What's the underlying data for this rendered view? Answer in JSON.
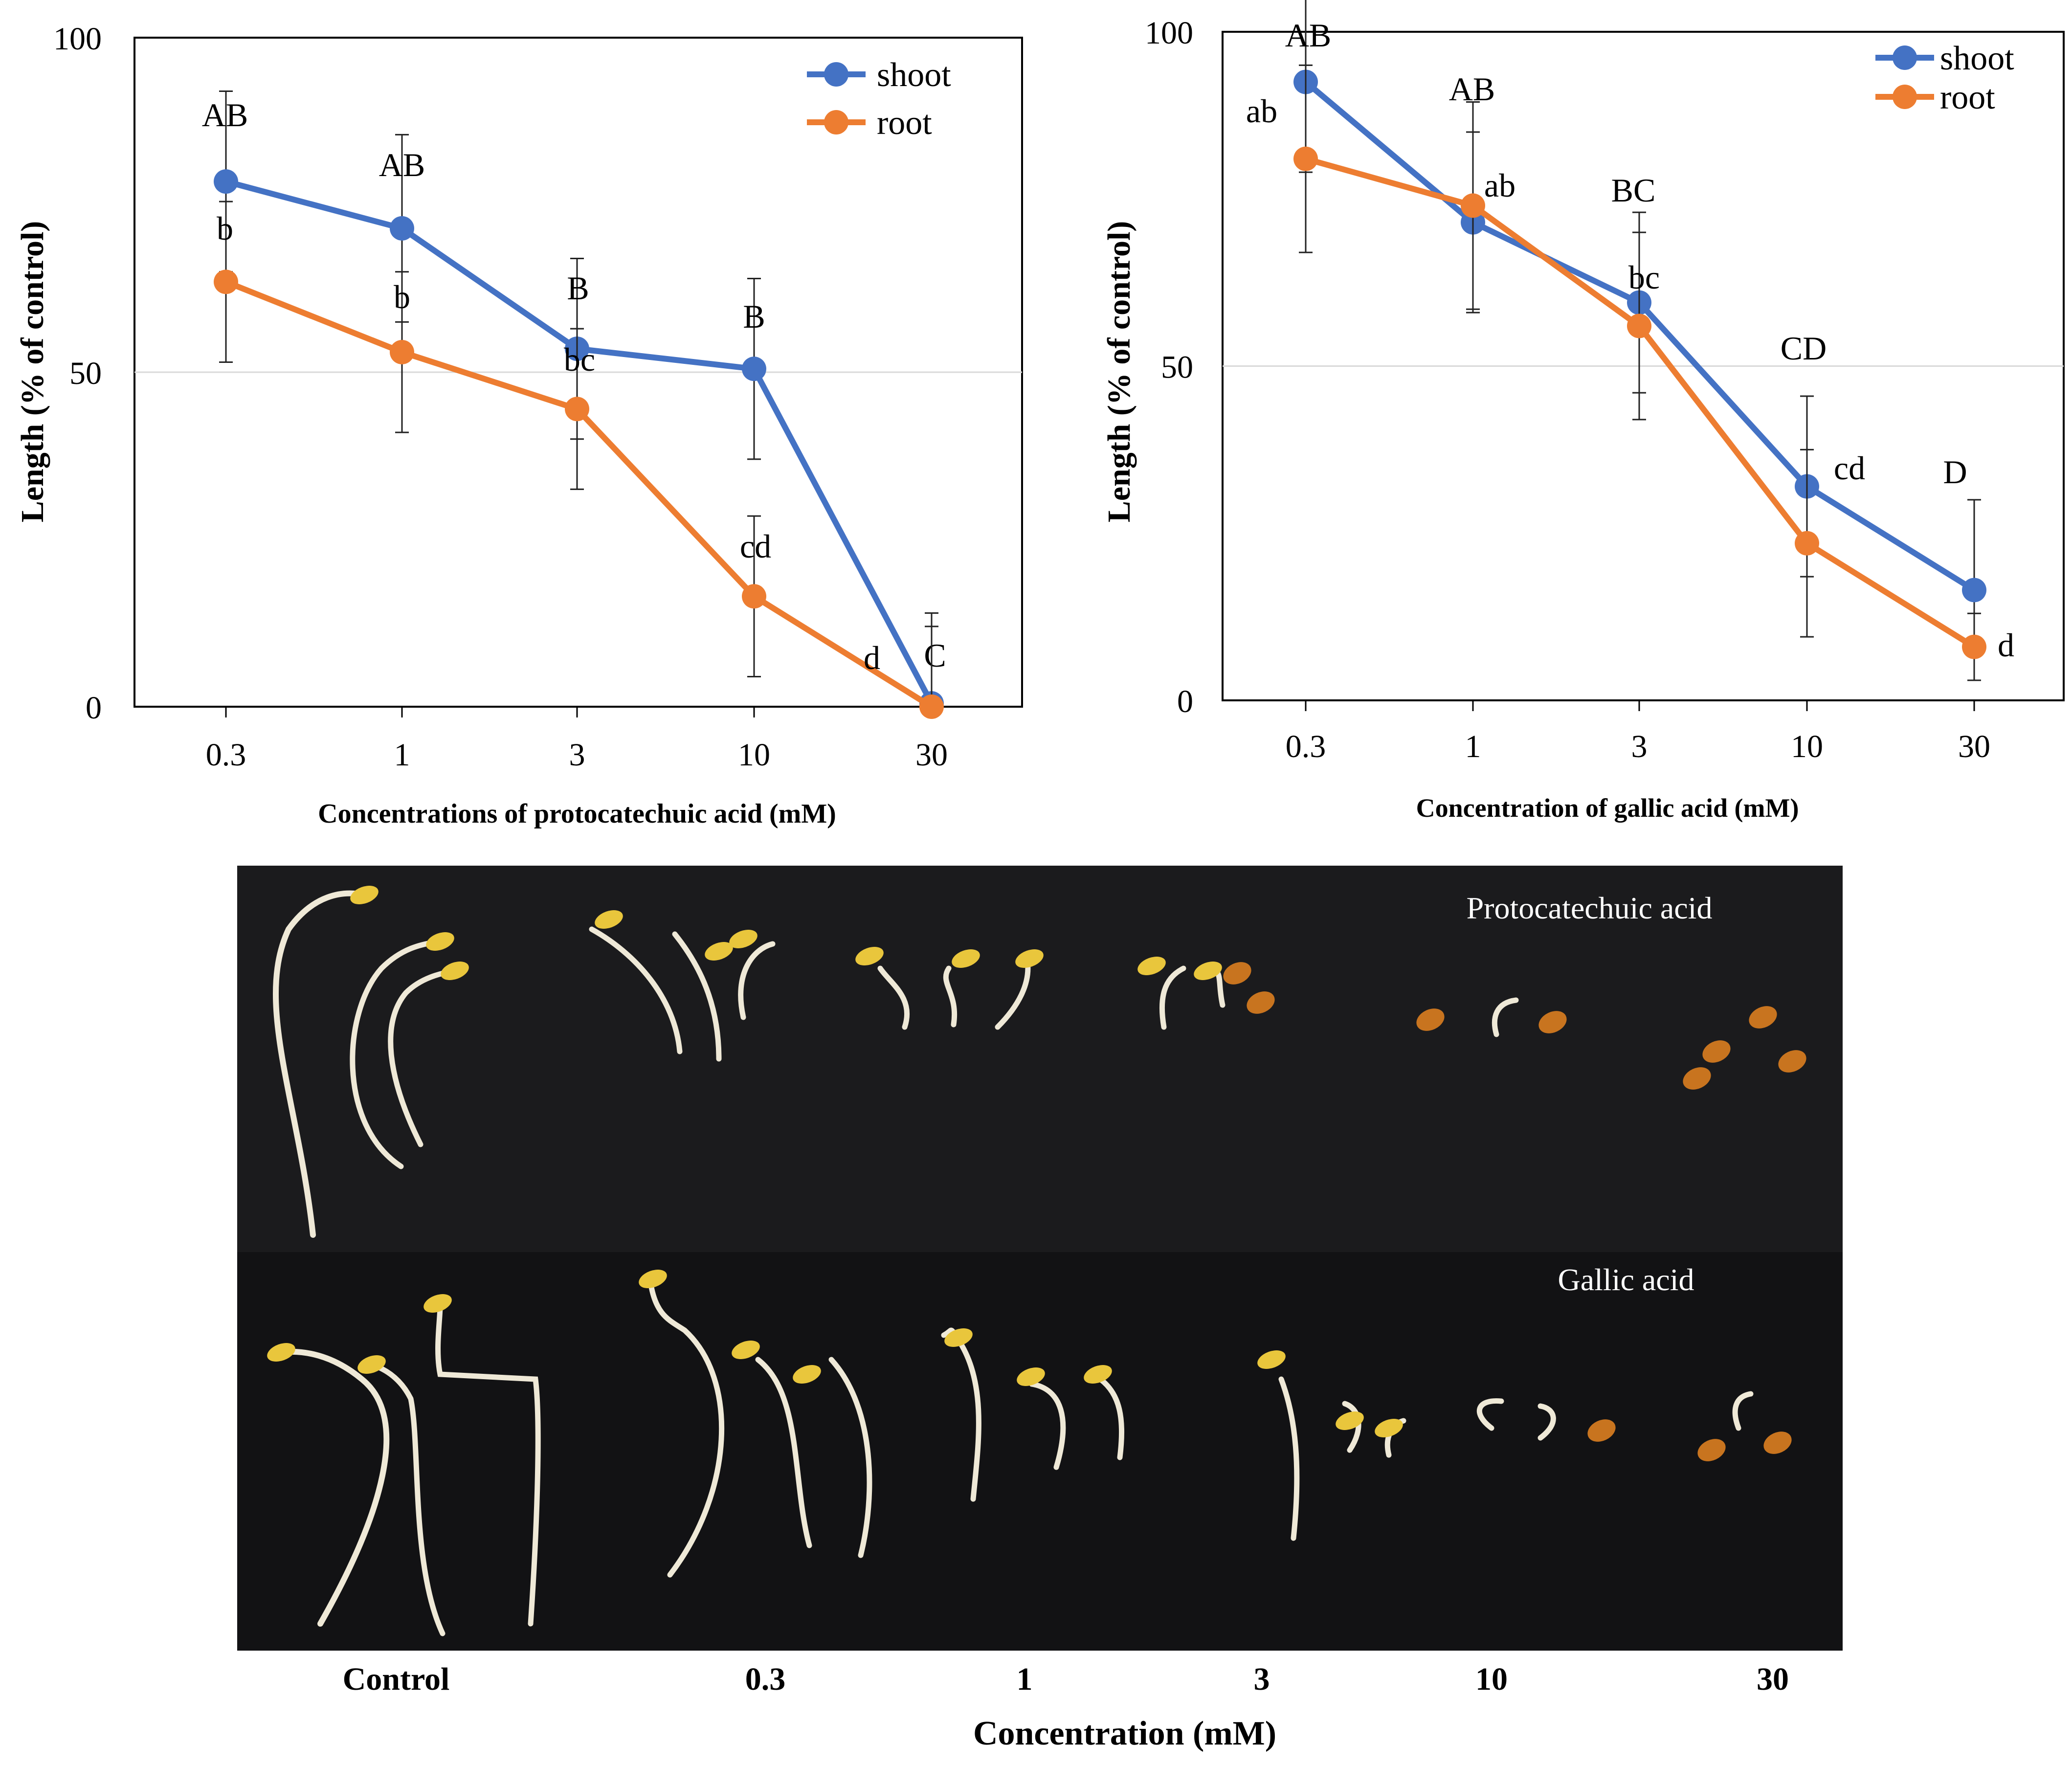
{
  "chart_data": [
    {
      "type": "line",
      "title": "",
      "xlabel": "Concentrations of protocatechuic acid (mM)",
      "ylabel": "Length (% of control)",
      "categories": [
        "0.3",
        "1",
        "3",
        "10",
        "30"
      ],
      "ylim": [
        0,
        100
      ],
      "yticks": [
        "0",
        "50",
        "100"
      ],
      "gridlines": [
        50
      ],
      "legend": {
        "position": "top-right",
        "entries": [
          "shoot",
          "root"
        ]
      },
      "series": [
        {
          "name": "shoot",
          "color": "#4472C4",
          "values": [
            78.5,
            71.5,
            53.5,
            50.5,
            0.5
          ],
          "errors": [
            13.5,
            14.0,
            13.5,
            13.5,
            13.5
          ],
          "letters": [
            "AB",
            "AB",
            "B",
            "B",
            "C"
          ]
        },
        {
          "name": "root",
          "color": "#ED7D31",
          "values": [
            63.5,
            53.0,
            44.5,
            16.5,
            0
          ],
          "errors": [
            12.0,
            12.0,
            12.0,
            12.0,
            12.0
          ],
          "letters": [
            "b",
            "b",
            "bc",
            "cd",
            "d"
          ]
        }
      ]
    },
    {
      "type": "line",
      "title": "",
      "xlabel": "Concentration of gallic acid (mM)",
      "ylabel": "Length (% of control)",
      "categories": [
        "0.3",
        "1",
        "3",
        "10",
        "30"
      ],
      "ylim": [
        0,
        100
      ],
      "yticks": [
        "0",
        "50",
        "100"
      ],
      "gridlines": [
        50
      ],
      "legend": {
        "position": "top-right",
        "entries": [
          "shoot",
          "root"
        ]
      },
      "series": [
        {
          "name": "shoot",
          "color": "#4472C4",
          "values": [
            92.5,
            71.5,
            59.5,
            32.0,
            16.5
          ],
          "errors": [
            13.5,
            13.5,
            13.5,
            13.5,
            13.5
          ],
          "letters": [
            "AB",
            "AB",
            "BC",
            "CD",
            "D"
          ]
        },
        {
          "name": "root",
          "color": "#ED7D31",
          "values": [
            81.0,
            74.0,
            56.0,
            23.5,
            8.0
          ],
          "errors": [
            14.0,
            15.5,
            14.0,
            14.0,
            5.0
          ],
          "letters": [
            "ab",
            "ab",
            "bc",
            "cd",
            "d"
          ]
        }
      ]
    }
  ],
  "photo": {
    "top_label": "Protocatechuic acid",
    "bottom_label": "Gallic acid",
    "column_labels": [
      "Control",
      "0.3",
      "1",
      "3",
      "10",
      "30"
    ],
    "xlabel": "Concentration (mM)"
  }
}
